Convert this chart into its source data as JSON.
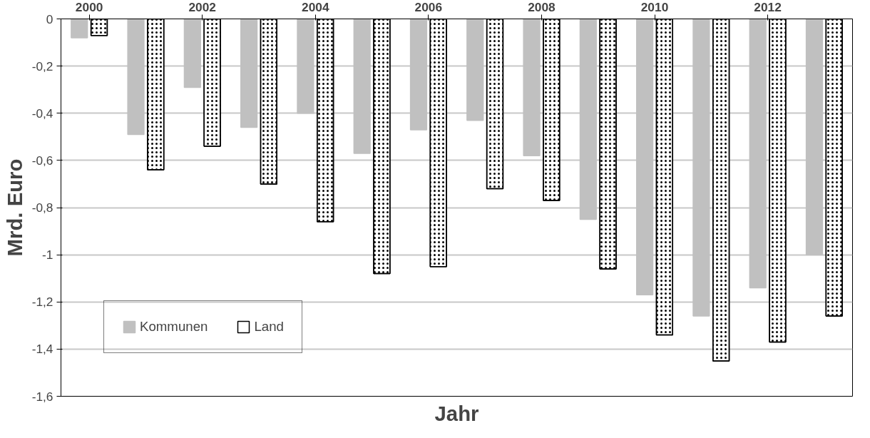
{
  "chart_data": {
    "type": "bar",
    "xlabel": "Jahr",
    "ylabel": "Mrd. Euro",
    "categories": [
      "2000",
      null,
      "2002",
      null,
      "2004",
      null,
      "2006",
      null,
      "2008",
      null,
      "2010",
      null,
      "2012",
      null
    ],
    "series": [
      {
        "name": "Kommunen",
        "color": "#c0c0c0",
        "values": [
          -0.08,
          -0.49,
          -0.29,
          -0.46,
          -0.4,
          -0.57,
          -0.47,
          -0.43,
          -0.58,
          -0.85,
          -1.17,
          -1.26,
          -1.14,
          -1.0
        ]
      },
      {
        "name": "Land",
        "color": "#ffffff",
        "values": [
          -0.07,
          -0.64,
          -0.54,
          -0.7,
          -0.86,
          -1.08,
          -1.05,
          -0.72,
          -0.77,
          -1.06,
          -1.34,
          -1.45,
          -1.37,
          -1.26
        ]
      }
    ],
    "ylim": [
      -1.6,
      0
    ],
    "yticks": [
      {
        "value": -1.6,
        "label": "-1,6"
      },
      {
        "value": -1.4,
        "label": "-1,4"
      },
      {
        "value": -1.2,
        "label": "-1,2"
      },
      -1,
      {
        "value": -0.8,
        "label": "-0,8"
      },
      {
        "value": -0.6,
        "label": "-0,6"
      },
      {
        "value": -0.4,
        "label": "-0,4"
      },
      {
        "value": -0.2,
        "label": "-0,2"
      },
      0
    ],
    "grid": "y",
    "legend": "bottom left"
  }
}
